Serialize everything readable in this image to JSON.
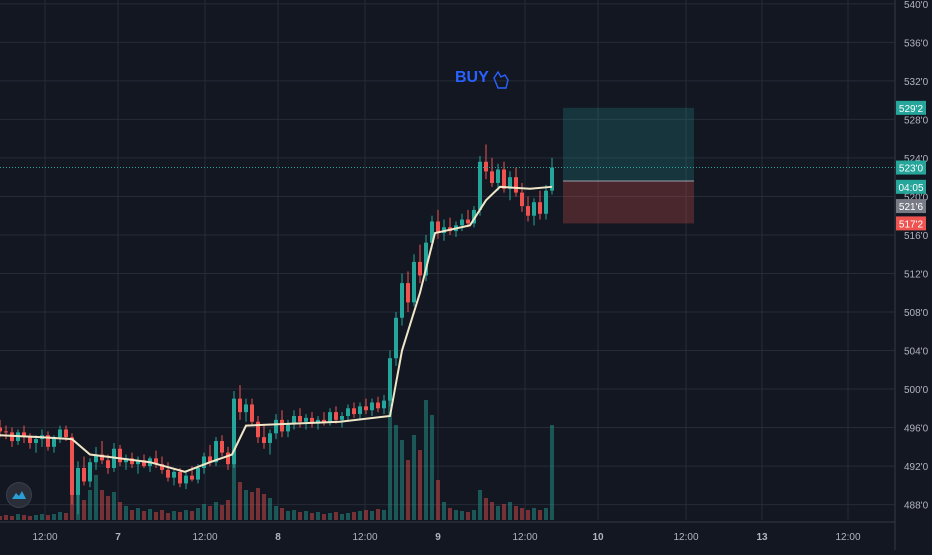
{
  "chart_data": {
    "type": "candlestick",
    "title": "",
    "y_axis": {
      "ylim": [
        4864,
        5404
      ],
      "tick_values": [
        4880,
        4920,
        4960,
        5000,
        5040,
        5080,
        5120,
        5160,
        5200,
        5240,
        5280,
        5320,
        5360,
        5400
      ],
      "tick_labels": [
        "488'0",
        "492'0",
        "496'0",
        "500'0",
        "504'0",
        "508'0",
        "512'0",
        "516'0",
        "520'0",
        "524'0",
        "528'0",
        "532'0",
        "536'0",
        "540'0"
      ]
    },
    "x_axis": {
      "tick_labels": [
        "12:00",
        "7",
        "12:00",
        "8",
        "12:00",
        "9",
        "12:00",
        "10",
        "12:00",
        "13",
        "12:00"
      ],
      "bold_labels": [
        "7",
        "8",
        "9",
        "10",
        "13"
      ]
    },
    "grid": true,
    "last_price": 5230,
    "price_labels": [
      {
        "text": "529'2",
        "value": 5292,
        "color": "#26a69a"
      },
      {
        "text": "523'0",
        "value": 5230,
        "color": "#26a69a"
      },
      {
        "text": "04:05",
        "value": 5210,
        "color": "#26a69a"
      },
      {
        "text": "521'6",
        "value": 5190,
        "color": "#787b86"
      },
      {
        "text": "517'2",
        "value": 5172,
        "color": "#ef5350"
      }
    ],
    "annotation": {
      "text": "BUY",
      "icon": "pointer-hand-icon",
      "color": "#2962ff"
    },
    "position_tool": {
      "entry": 5216,
      "target": 5292,
      "stop": 5172,
      "profit_color": "#26a69a",
      "loss_color": "#ef5350"
    },
    "moving_average_color": "#f0e6c8",
    "up_color": "#26a69a",
    "down_color": "#ef5350",
    "ohlc_points": [
      [
        0,
        4960,
        4968,
        4950,
        4956
      ],
      [
        6,
        4956,
        4962,
        4948,
        4955
      ],
      [
        12,
        4955,
        4960,
        4940,
        4946
      ],
      [
        18,
        4946,
        4958,
        4942,
        4955
      ],
      [
        24,
        4955,
        4962,
        4944,
        4950
      ],
      [
        30,
        4950,
        4954,
        4938,
        4944
      ],
      [
        36,
        4944,
        4952,
        4934,
        4948
      ],
      [
        42,
        4948,
        4958,
        4940,
        4952
      ],
      [
        48,
        4952,
        4956,
        4936,
        4940
      ],
      [
        54,
        4940,
        4952,
        4934,
        4950
      ],
      [
        60,
        4950,
        4962,
        4944,
        4958
      ],
      [
        66,
        4958,
        4962,
        4946,
        4950
      ],
      [
        72,
        4950,
        4954,
        4880,
        4890
      ],
      [
        78,
        4890,
        4925,
        4870,
        4918
      ],
      [
        84,
        4918,
        4930,
        4900,
        4904
      ],
      [
        90,
        4904,
        4928,
        4898,
        4924
      ],
      [
        96,
        4924,
        4940,
        4916,
        4932
      ],
      [
        102,
        4932,
        4946,
        4922,
        4926
      ],
      [
        108,
        4926,
        4932,
        4912,
        4918
      ],
      [
        114,
        4918,
        4944,
        4914,
        4938
      ],
      [
        120,
        4938,
        4942,
        4920,
        4924
      ],
      [
        126,
        4924,
        4932,
        4916,
        4928
      ],
      [
        132,
        4928,
        4934,
        4918,
        4922
      ],
      [
        138,
        4922,
        4930,
        4912,
        4926
      ],
      [
        144,
        4926,
        4932,
        4918,
        4920
      ],
      [
        150,
        4920,
        4930,
        4914,
        4928
      ],
      [
        156,
        4928,
        4936,
        4918,
        4922
      ],
      [
        162,
        4922,
        4930,
        4912,
        4916
      ],
      [
        168,
        4916,
        4924,
        4904,
        4908
      ],
      [
        174,
        4908,
        4918,
        4900,
        4914
      ],
      [
        180,
        4914,
        4918,
        4898,
        4902
      ],
      [
        186,
        4902,
        4914,
        4896,
        4910
      ],
      [
        192,
        4910,
        4920,
        4904,
        4906
      ],
      [
        198,
        4906,
        4922,
        4902,
        4918
      ],
      [
        204,
        4918,
        4934,
        4912,
        4930
      ],
      [
        210,
        4930,
        4942,
        4920,
        4924
      ],
      [
        216,
        4924,
        4950,
        4920,
        4946
      ],
      [
        222,
        4946,
        4952,
        4930,
        4934
      ],
      [
        228,
        4934,
        4940,
        4916,
        4922
      ],
      [
        234,
        4922,
        4998,
        4918,
        4990
      ],
      [
        240,
        4990,
        5004,
        4968,
        4976
      ],
      [
        246,
        4976,
        4990,
        4966,
        4984
      ],
      [
        252,
        4984,
        4990,
        4962,
        4966
      ],
      [
        258,
        4966,
        4972,
        4944,
        4950
      ],
      [
        264,
        4950,
        4962,
        4938,
        4944
      ],
      [
        270,
        4944,
        4958,
        4932,
        4954
      ],
      [
        276,
        4954,
        4974,
        4948,
        4968
      ],
      [
        282,
        4968,
        4978,
        4950,
        4956
      ],
      [
        288,
        4956,
        4968,
        4950,
        4964
      ],
      [
        294,
        4964,
        4978,
        4958,
        4972
      ],
      [
        300,
        4972,
        4980,
        4960,
        4966
      ],
      [
        306,
        4966,
        4974,
        4958,
        4970
      ],
      [
        312,
        4970,
        4976,
        4960,
        4964
      ],
      [
        318,
        4964,
        4972,
        4958,
        4968
      ],
      [
        324,
        4968,
        4976,
        4962,
        4966
      ],
      [
        330,
        4966,
        4980,
        4962,
        4976
      ],
      [
        336,
        4976,
        4982,
        4964,
        4968
      ],
      [
        342,
        4968,
        4976,
        4960,
        4972
      ],
      [
        348,
        4972,
        4984,
        4966,
        4980
      ],
      [
        354,
        4980,
        4986,
        4970,
        4974
      ],
      [
        360,
        4974,
        4986,
        4968,
        4982
      ],
      [
        366,
        4982,
        4990,
        4974,
        4978
      ],
      [
        372,
        4978,
        4990,
        4972,
        4986
      ],
      [
        378,
        4986,
        4992,
        4976,
        4980
      ],
      [
        384,
        4980,
        4994,
        4974,
        4988
      ],
      [
        390,
        4988,
        5040,
        4982,
        5032
      ],
      [
        396,
        5032,
        5080,
        5024,
        5074
      ],
      [
        402,
        5074,
        5120,
        5066,
        5110
      ],
      [
        408,
        5110,
        5122,
        5080,
        5090
      ],
      [
        414,
        5090,
        5140,
        5086,
        5132
      ],
      [
        420,
        5132,
        5150,
        5110,
        5118
      ],
      [
        426,
        5118,
        5160,
        5112,
        5152
      ],
      [
        432,
        5152,
        5180,
        5146,
        5174
      ],
      [
        438,
        5174,
        5186,
        5156,
        5162
      ],
      [
        444,
        5162,
        5176,
        5154,
        5168
      ],
      [
        450,
        5168,
        5178,
        5160,
        5164
      ],
      [
        456,
        5164,
        5174,
        5158,
        5170
      ],
      [
        462,
        5170,
        5182,
        5164,
        5176
      ],
      [
        468,
        5176,
        5186,
        5168,
        5172
      ],
      [
        474,
        5172,
        5190,
        5168,
        5186
      ],
      [
        480,
        5186,
        5242,
        5180,
        5236
      ],
      [
        486,
        5236,
        5254,
        5218,
        5226
      ],
      [
        492,
        5226,
        5240,
        5210,
        5214
      ],
      [
        498,
        5214,
        5234,
        5206,
        5228
      ],
      [
        504,
        5228,
        5236,
        5204,
        5208
      ],
      [
        510,
        5208,
        5226,
        5196,
        5220
      ],
      [
        516,
        5220,
        5230,
        5200,
        5204
      ],
      [
        522,
        5204,
        5214,
        5184,
        5190
      ],
      [
        528,
        5190,
        5200,
        5174,
        5180
      ],
      [
        534,
        5180,
        5198,
        5170,
        5194
      ],
      [
        540,
        5194,
        5206,
        5176,
        5182
      ],
      [
        546,
        5182,
        5212,
        5176,
        5206
      ],
      [
        552,
        5206,
        5240,
        5202,
        5230
      ]
    ],
    "moving_average": [
      [
        0,
        4952
      ],
      [
        40,
        4950
      ],
      [
        72,
        4948
      ],
      [
        90,
        4932
      ],
      [
        150,
        4924
      ],
      [
        185,
        4914
      ],
      [
        210,
        4924
      ],
      [
        232,
        4932
      ],
      [
        246,
        4962
      ],
      [
        290,
        4964
      ],
      [
        340,
        4966
      ],
      [
        390,
        4972
      ],
      [
        402,
        5040
      ],
      [
        420,
        5100
      ],
      [
        435,
        5162
      ],
      [
        470,
        5170
      ],
      [
        486,
        5196
      ],
      [
        500,
        5210
      ],
      [
        530,
        5208
      ],
      [
        552,
        5210
      ]
    ],
    "volume_points": [
      [
        0,
        4
      ],
      [
        6,
        5
      ],
      [
        12,
        4
      ],
      [
        18,
        6
      ],
      [
        24,
        5
      ],
      [
        30,
        4
      ],
      [
        36,
        5
      ],
      [
        42,
        6
      ],
      [
        48,
        5
      ],
      [
        54,
        6
      ],
      [
        60,
        8
      ],
      [
        66,
        7
      ],
      [
        72,
        55
      ],
      [
        78,
        42
      ],
      [
        84,
        20
      ],
      [
        90,
        30
      ],
      [
        96,
        45
      ],
      [
        102,
        30
      ],
      [
        108,
        24
      ],
      [
        114,
        28
      ],
      [
        120,
        18
      ],
      [
        126,
        14
      ],
      [
        132,
        10
      ],
      [
        138,
        12
      ],
      [
        144,
        9
      ],
      [
        150,
        11
      ],
      [
        156,
        8
      ],
      [
        162,
        10
      ],
      [
        168,
        7
      ],
      [
        174,
        9
      ],
      [
        180,
        8
      ],
      [
        186,
        10
      ],
      [
        192,
        9
      ],
      [
        198,
        12
      ],
      [
        204,
        16
      ],
      [
        210,
        14
      ],
      [
        216,
        18
      ],
      [
        222,
        15
      ],
      [
        228,
        20
      ],
      [
        234,
        70
      ],
      [
        240,
        38
      ],
      [
        246,
        30
      ],
      [
        252,
        28
      ],
      [
        258,
        32
      ],
      [
        264,
        26
      ],
      [
        270,
        22
      ],
      [
        276,
        14
      ],
      [
        282,
        12
      ],
      [
        288,
        9
      ],
      [
        294,
        10
      ],
      [
        300,
        8
      ],
      [
        306,
        9
      ],
      [
        312,
        7
      ],
      [
        318,
        8
      ],
      [
        324,
        6
      ],
      [
        330,
        7
      ],
      [
        336,
        8
      ],
      [
        342,
        6
      ],
      [
        348,
        7
      ],
      [
        354,
        8
      ],
      [
        360,
        9
      ],
      [
        366,
        10
      ],
      [
        372,
        9
      ],
      [
        378,
        11
      ],
      [
        384,
        10
      ],
      [
        390,
        135
      ],
      [
        396,
        95
      ],
      [
        402,
        80
      ],
      [
        408,
        60
      ],
      [
        414,
        85
      ],
      [
        420,
        70
      ],
      [
        426,
        120
      ],
      [
        432,
        105
      ],
      [
        438,
        40
      ],
      [
        444,
        18
      ],
      [
        450,
        12
      ],
      [
        456,
        10
      ],
      [
        462,
        9
      ],
      [
        468,
        8
      ],
      [
        474,
        10
      ],
      [
        480,
        30
      ],
      [
        486,
        22
      ],
      [
        492,
        18
      ],
      [
        498,
        14
      ],
      [
        504,
        16
      ],
      [
        510,
        18
      ],
      [
        516,
        14
      ],
      [
        522,
        12
      ],
      [
        528,
        10
      ],
      [
        534,
        12
      ],
      [
        540,
        10
      ],
      [
        546,
        12
      ],
      [
        552,
        95
      ]
    ]
  }
}
